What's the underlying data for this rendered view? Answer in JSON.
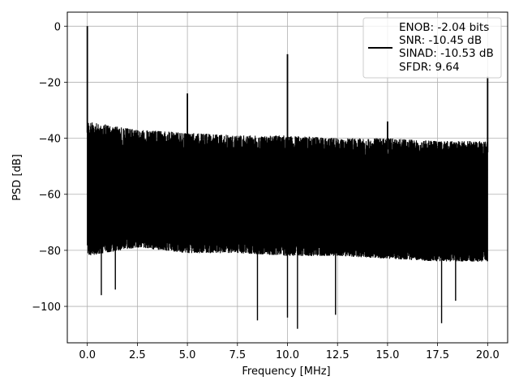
{
  "chart_data": {
    "type": "line",
    "xlabel": "Frequency [MHz]",
    "ylabel": "PSD [dB]",
    "xlim": [
      -1.0,
      21.0
    ],
    "ylim": [
      -113,
      5
    ],
    "grid": true,
    "x_ticks": [
      0.0,
      2.5,
      5.0,
      7.5,
      10.0,
      12.5,
      15.0,
      17.5,
      20.0
    ],
    "x_tick_labels": [
      "0.0",
      "2.5",
      "5.0",
      "7.5",
      "10.0",
      "12.5",
      "15.0",
      "17.5",
      "20.0"
    ],
    "y_ticks": [
      0,
      -20,
      -40,
      -60,
      -80,
      -100
    ],
    "y_tick_labels": [
      "0",
      "−20",
      "−40",
      "−60",
      "−80",
      "−100"
    ],
    "legend": {
      "position": "upper-right",
      "entries": [
        "ENOB: -2.04 bits",
        "SNR: -10.45 dB",
        "SINAD: -10.53 dB",
        "SFDR: 9.64"
      ]
    },
    "series": [
      {
        "color": "#000000",
        "x_range": [
          0.0,
          20.0
        ],
        "noise_floor_upper_db": [
          [
            0.0,
            -33
          ],
          [
            2.5,
            -36
          ],
          [
            5.0,
            -37
          ],
          [
            7.5,
            -38
          ],
          [
            10.0,
            -38
          ],
          [
            12.5,
            -39
          ],
          [
            15.0,
            -39
          ],
          [
            17.5,
            -40
          ],
          [
            20.0,
            -40
          ]
        ],
        "noise_floor_lower_db": [
          [
            0.0,
            -83
          ],
          [
            2.5,
            -80
          ],
          [
            5.0,
            -82
          ],
          [
            7.5,
            -82
          ],
          [
            10.0,
            -83
          ],
          [
            12.5,
            -83
          ],
          [
            15.0,
            -84
          ],
          [
            17.5,
            -85
          ],
          [
            20.0,
            -85
          ]
        ],
        "peaks": [
          {
            "x": 0.0,
            "y": 0
          },
          {
            "x": 5.0,
            "y": -24
          },
          {
            "x": 10.0,
            "y": -10
          },
          {
            "x": 15.0,
            "y": -34
          },
          {
            "x": 20.0,
            "y": -18
          }
        ],
        "dips": [
          {
            "x": 0.7,
            "y": -96
          },
          {
            "x": 1.4,
            "y": -94
          },
          {
            "x": 8.5,
            "y": -105
          },
          {
            "x": 10.0,
            "y": -104
          },
          {
            "x": 10.5,
            "y": -108
          },
          {
            "x": 12.4,
            "y": -103
          },
          {
            "x": 17.7,
            "y": -106
          },
          {
            "x": 18.4,
            "y": -98
          }
        ]
      }
    ]
  }
}
